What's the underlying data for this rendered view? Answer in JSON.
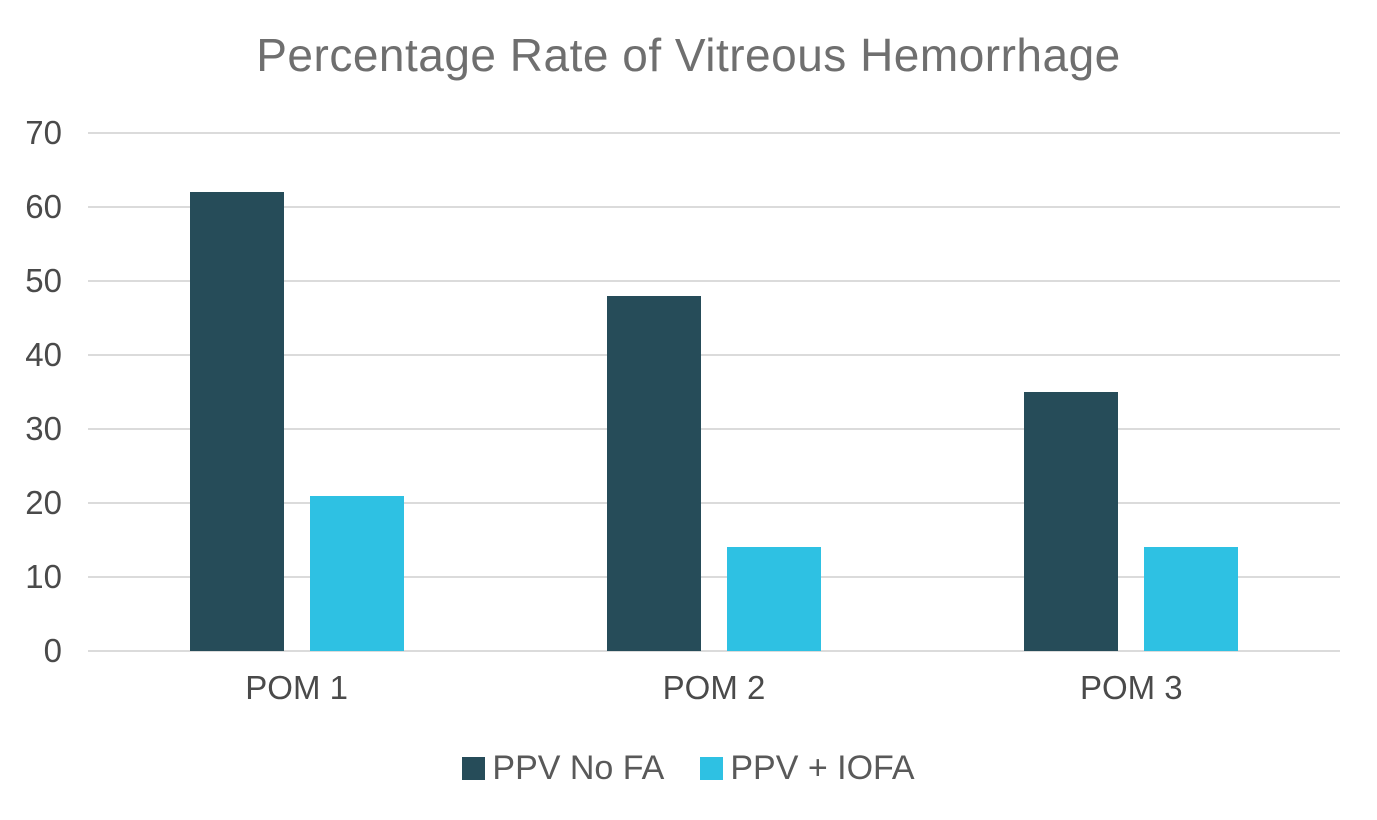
{
  "chart_data": {
    "type": "bar",
    "title": "Percentage Rate of Vitreous Hemorrhage",
    "categories": [
      "POM 1",
      "POM 2",
      "POM 3"
    ],
    "series": [
      {
        "name": "PPV No FA",
        "color": "#264C59",
        "values": [
          62,
          48,
          35
        ]
      },
      {
        "name": "PPV + IOFA",
        "color": "#2EC1E3",
        "values": [
          21,
          14,
          14
        ]
      }
    ],
    "xlabel": "",
    "ylabel": "",
    "ylim": [
      0,
      70
    ],
    "ytick_step": 10,
    "ytick_labels": [
      "0",
      "10",
      "20",
      "30",
      "40",
      "50",
      "60",
      "70"
    ],
    "grid": true,
    "legend_position": "bottom",
    "colors": {
      "grid": "#dbdbdb",
      "title": "#6f6f6f",
      "tick_label": "#4a4a4a",
      "legend_label": "#595959",
      "background": "#ffffff"
    }
  }
}
